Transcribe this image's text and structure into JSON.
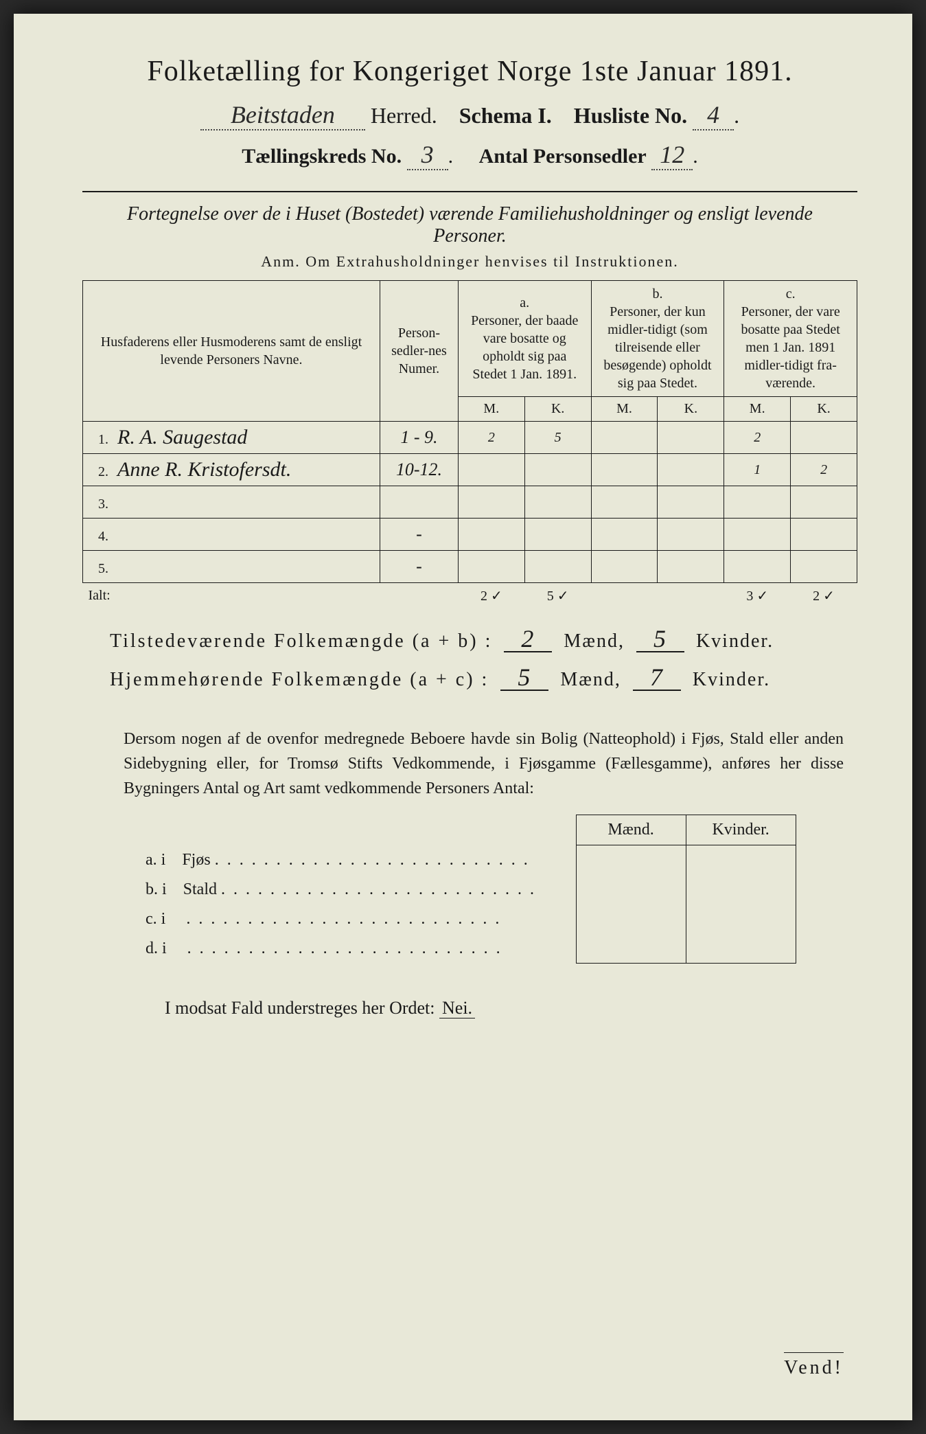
{
  "header": {
    "title": "Folketælling for Kongeriget Norge 1ste Januar 1891.",
    "herred_hand": "Beitstaden",
    "herred_label": "Herred.",
    "schema": "Schema I.",
    "husliste_label": "Husliste No.",
    "husliste_no": "4",
    "kreds_label": "Tællingskreds No.",
    "kreds_no": "3",
    "personsedler_label": "Antal Personsedler",
    "personsedler_no": "12"
  },
  "subtitle": "Fortegnelse over de i Huset (Bostedet) værende Familiehusholdninger og ensligt levende Personer.",
  "anm": "Anm.  Om Extrahusholdninger henvises til Instruktionen.",
  "table": {
    "col_name": "Husfaderens eller Husmoderens samt de ensligt levende Personers Navne.",
    "col_num": "Person-sedler-nes Numer.",
    "col_a_top": "a.",
    "col_a": "Personer, der baade vare bosatte og opholdt sig paa Stedet 1 Jan. 1891.",
    "col_b_top": "b.",
    "col_b": "Personer, der kun midler-tidigt (som tilreisende eller besøgende) opholdt sig paa Stedet.",
    "col_c_top": "c.",
    "col_c": "Personer, der vare bosatte paa Stedet men 1 Jan. 1891 midler-tidigt fra-værende.",
    "m": "M.",
    "k": "K.",
    "rows": [
      {
        "n": "1.",
        "name": "R. A. Saugestad",
        "num": "1 - 9.",
        "aM": "2",
        "aK": "5",
        "bM": "",
        "bK": "",
        "cM": "2",
        "cK": ""
      },
      {
        "n": "2.",
        "name": "Anne R. Kristofersdt.",
        "num": "10-12.",
        "aM": "",
        "aK": "",
        "bM": "",
        "bK": "",
        "cM": "1",
        "cK": "2"
      },
      {
        "n": "3.",
        "name": "",
        "num": "",
        "aM": "",
        "aK": "",
        "bM": "",
        "bK": "",
        "cM": "",
        "cK": ""
      },
      {
        "n": "4.",
        "name": "",
        "num": "-",
        "aM": "",
        "aK": "",
        "bM": "",
        "bK": "",
        "cM": "",
        "cK": ""
      },
      {
        "n": "5.",
        "name": "",
        "num": "-",
        "aM": "",
        "aK": "",
        "bM": "",
        "bK": "",
        "cM": "",
        "cK": ""
      }
    ],
    "ialt": "Ialt:",
    "ialt_vals": {
      "aM": "2 ✓",
      "aK": "5 ✓",
      "bM": "",
      "bK": "",
      "cM": "3 ✓",
      "cK": "2 ✓"
    }
  },
  "summary": {
    "line1_a": "Tilstedeværende Folkemængde (a + b) :",
    "line1_m": "2",
    "line1_mid": "Mænd,",
    "line1_k": "5",
    "line1_end": "Kvinder.",
    "line2_a": "Hjemmehørende Folkemængde (a + c) :",
    "line2_m": "5",
    "line2_k": "7"
  },
  "para": "Dersom nogen af de ovenfor medregnede Beboere havde sin Bolig (Natteophold) i Fjøs, Stald eller anden Sidebygning eller, for Tromsø Stifts Vedkommende, i Fjøsgamme (Fællesgamme), anføres her disse Bygningers Antal og Art samt vedkommende Personers Antal:",
  "subtable": {
    "h_m": "Mænd.",
    "h_k": "Kvinder.",
    "rows": [
      {
        "l": "a.  i",
        "r": "Fjøs"
      },
      {
        "l": "b.  i",
        "r": "Stald"
      },
      {
        "l": "c.  i",
        "r": ""
      },
      {
        "l": "d.  i",
        "r": ""
      }
    ]
  },
  "nei": {
    "pre": "I modsat Fald understreges her Ordet:",
    "word": "Nei."
  },
  "vend": "Vend!"
}
